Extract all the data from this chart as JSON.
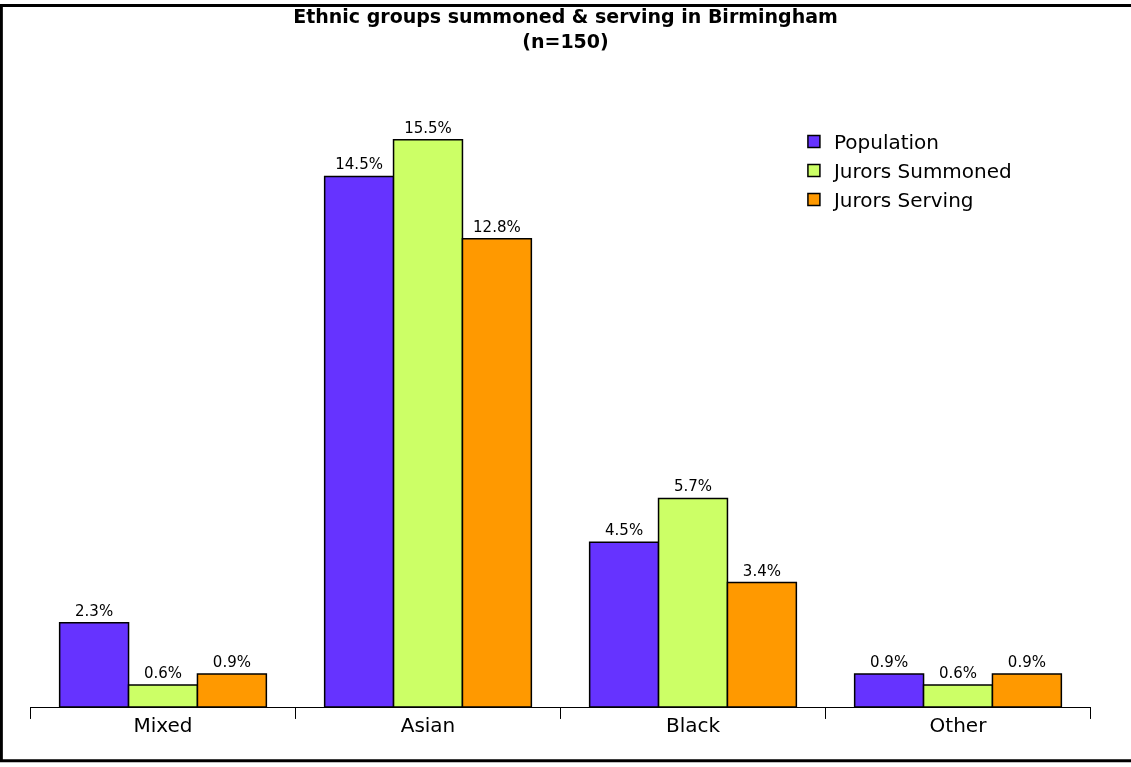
{
  "chart_data": {
    "type": "bar",
    "title": "Ethnic groups summoned & serving in Birmingham\n(n=150)",
    "categories": [
      "Mixed",
      "Asian",
      "Black",
      "Other"
    ],
    "series": [
      {
        "name": "Population",
        "color": "#6633ff",
        "values": [
          2.3,
          14.5,
          4.5,
          0.9
        ],
        "value_labels": [
          "2.3%",
          "14.5%",
          "4.5%",
          "0.9%"
        ]
      },
      {
        "name": "Jurors Summoned",
        "color": "#ccff66",
        "values": [
          0.6,
          15.5,
          5.7,
          0.6
        ],
        "value_labels": [
          "0.6%",
          "15.5%",
          "5.7%",
          "0.6%"
        ]
      },
      {
        "name": "Jurors Serving",
        "color": "#ff9900",
        "values": [
          0.9,
          12.8,
          3.4,
          0.9
        ],
        "value_labels": [
          "0.9%",
          "12.8%",
          "3.4%",
          "0.9%"
        ]
      }
    ],
    "legend": "top right"
  }
}
